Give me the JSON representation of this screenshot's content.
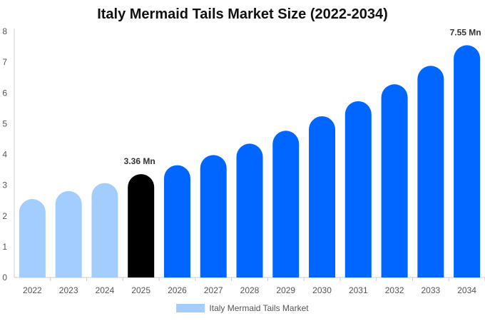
{
  "chart_data": {
    "type": "bar",
    "title": "Italy Mermaid Tails Market Size (2022-2034)",
    "xlabel": "",
    "ylabel": "",
    "categories": [
      "2022",
      "2023",
      "2024",
      "2025",
      "2026",
      "2027",
      "2028",
      "2029",
      "2030",
      "2031",
      "2032",
      "2033",
      "2034"
    ],
    "series": [
      {
        "name": "Italy Mermaid Tails Market",
        "values": [
          2.55,
          2.81,
          3.07,
          3.36,
          3.65,
          3.98,
          4.35,
          4.77,
          5.24,
          5.73,
          6.28,
          6.88,
          7.55
        ]
      }
    ],
    "ylim": [
      0,
      8
    ],
    "yticks": [
      0,
      1,
      2,
      3,
      4,
      5,
      6,
      7,
      8
    ],
    "grid": false,
    "legend_position": "bottom",
    "data_labels": [
      {
        "index": 3,
        "text": "3.36 Mn"
      },
      {
        "index": 12,
        "text": "7.55 Mn"
      }
    ],
    "colors": {
      "historical": "#a3cdfc",
      "base_year": "#000000",
      "forecast": "#0066ff",
      "legend": "#a3cdfc",
      "axis": "#cccccc"
    },
    "historical_count": 3,
    "base_year_index": 3
  }
}
